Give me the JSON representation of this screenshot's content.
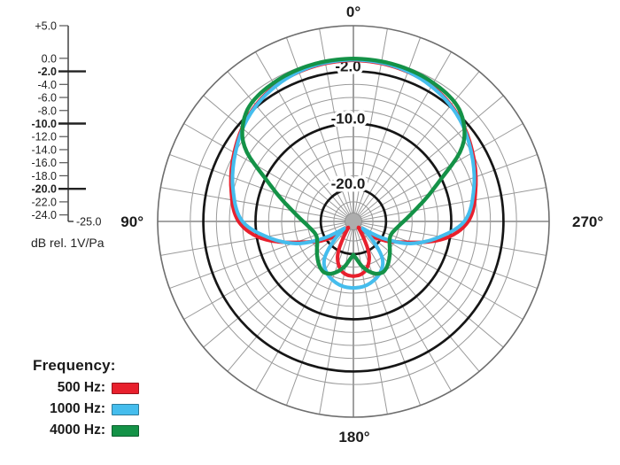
{
  "scale": {
    "unit_label": "dB rel. 1V/Pa",
    "end_label": "-25.0",
    "ticks": [
      {
        "label": "+5.0",
        "db": 5,
        "bold": false
      },
      {
        "label": "0.0",
        "db": 0,
        "bold": false
      },
      {
        "label": "-2.0",
        "db": -2,
        "bold": true
      },
      {
        "label": "-4.0",
        "db": -4,
        "bold": false
      },
      {
        "label": "-6.0",
        "db": -6,
        "bold": false
      },
      {
        "label": "-8.0",
        "db": -8,
        "bold": false
      },
      {
        "label": "-10.0",
        "db": -10,
        "bold": true
      },
      {
        "label": "-12.0",
        "db": -12,
        "bold": false
      },
      {
        "label": "-14.0",
        "db": -14,
        "bold": false
      },
      {
        "label": "-16.0",
        "db": -16,
        "bold": false
      },
      {
        "label": "-18.0",
        "db": -18,
        "bold": false
      },
      {
        "label": "-20.0",
        "db": -20,
        "bold": true
      },
      {
        "label": "-22.0",
        "db": -22,
        "bold": false
      },
      {
        "label": "-24.0",
        "db": -24,
        "bold": false
      }
    ]
  },
  "legend": {
    "heading": "Frequency:",
    "items": [
      {
        "label": "500 Hz:",
        "color": "#E8202D"
      },
      {
        "label": "1000 Hz:",
        "color": "#45BDED"
      },
      {
        "label": "4000 Hz:",
        "color": "#149247"
      }
    ]
  },
  "chart_data": {
    "type": "polar",
    "title": "Microphone polar pattern, dB rel. 1V/Pa",
    "radial_axis": {
      "unit": "dB",
      "min": -25,
      "max": 5,
      "ring_step_db": 2,
      "bold_rings_db": [
        -2,
        -10,
        -20
      ],
      "ring_labels": [
        {
          "label": "-2.0",
          "db": -2
        },
        {
          "label": "-10.0",
          "db": -10
        },
        {
          "label": "-20.0",
          "db": -20
        }
      ],
      "spoke_step_deg": 10
    },
    "angle_labels": [
      {
        "label": "0°",
        "angle": 0
      },
      {
        "label": "90°",
        "angle": 90
      },
      {
        "label": "270°",
        "angle": 270
      },
      {
        "label": "180°",
        "angle": 180
      }
    ],
    "series": [
      {
        "name": "500 Hz",
        "color": "#E8202D",
        "points_deg_db": [
          [
            0,
            -0.3
          ],
          [
            15,
            -0.5
          ],
          [
            30,
            -1.0
          ],
          [
            45,
            -2.2
          ],
          [
            60,
            -3.9
          ],
          [
            75,
            -5.6
          ],
          [
            90,
            -7.4
          ],
          [
            100,
            -10.5
          ],
          [
            112,
            -16.5
          ],
          [
            122,
            -19.5
          ],
          [
            132,
            -22.5
          ],
          [
            140,
            -23.8
          ],
          [
            147,
            -22.5
          ],
          [
            155,
            -19.3
          ],
          [
            165,
            -17.4
          ],
          [
            172,
            -16.8
          ],
          [
            180,
            -16.6
          ]
        ]
      },
      {
        "name": "1000 Hz",
        "color": "#45BDED",
        "points_deg_db": [
          [
            0,
            -0.2
          ],
          [
            15,
            -0.4
          ],
          [
            30,
            -1.1
          ],
          [
            45,
            -2.3
          ],
          [
            60,
            -4.1
          ],
          [
            75,
            -5.9
          ],
          [
            90,
            -8.0
          ],
          [
            100,
            -11.5
          ],
          [
            112,
            -16.0
          ],
          [
            120,
            -20.0
          ],
          [
            127,
            -23.2
          ],
          [
            134,
            -21.0
          ],
          [
            142,
            -17.8
          ],
          [
            152,
            -16.2
          ],
          [
            163,
            -15.3
          ],
          [
            172,
            -14.9
          ],
          [
            180,
            -14.8
          ]
        ]
      },
      {
        "name": "4000 Hz",
        "color": "#149247",
        "points_deg_db": [
          [
            0,
            -0.05
          ],
          [
            15,
            -0.15
          ],
          [
            30,
            -0.5
          ],
          [
            42,
            -1.2
          ],
          [
            50,
            -2.8
          ],
          [
            56,
            -5.0
          ],
          [
            64,
            -10.0
          ],
          [
            72,
            -13.2
          ],
          [
            80,
            -15.5
          ],
          [
            90,
            -17.3
          ],
          [
            100,
            -18.4
          ],
          [
            110,
            -18.9
          ],
          [
            120,
            -18.6
          ],
          [
            132,
            -17.5
          ],
          [
            143,
            -16.4
          ],
          [
            150,
            -16.0
          ],
          [
            158,
            -16.4
          ],
          [
            168,
            -17.8
          ],
          [
            175,
            -19.2
          ],
          [
            180,
            -19.9
          ]
        ]
      }
    ]
  }
}
